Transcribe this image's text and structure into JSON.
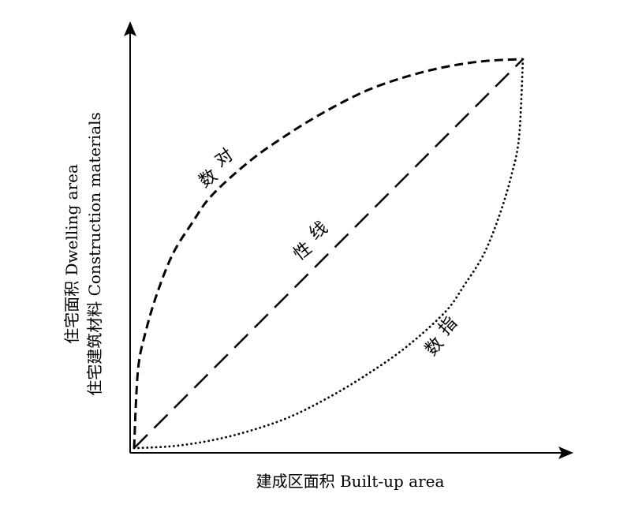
{
  "chart_data": {
    "type": "line",
    "xlabel": "建成区面积 Built-up area",
    "ylabel_lines": [
      "住宅面积 Dwelling area",
      "住宅建筑材料 Construction materials"
    ],
    "grid": false,
    "ticks": false,
    "xlim": [
      0,
      1
    ],
    "ylim": [
      0,
      1
    ],
    "series": [
      {
        "label_chars": [
          "对",
          "数"
        ],
        "style": "short-dash",
        "x": [
          0,
          0.01,
          0.03,
          0.06,
          0.1,
          0.15,
          0.2,
          0.3,
          0.4,
          0.5,
          0.6,
          0.7,
          0.8,
          0.9,
          1.0
        ],
        "y": [
          0,
          0.2,
          0.3,
          0.4,
          0.5,
          0.58,
          0.65,
          0.74,
          0.81,
          0.87,
          0.92,
          0.955,
          0.98,
          0.995,
          1.0
        ]
      },
      {
        "label_chars": [
          "线",
          "性"
        ],
        "style": "long-dash",
        "x": [
          0,
          1
        ],
        "y": [
          0,
          1
        ]
      },
      {
        "label_chars": [
          "指",
          "数"
        ],
        "style": "dotted",
        "x": [
          0,
          0.1,
          0.2,
          0.3,
          0.4,
          0.5,
          0.6,
          0.7,
          0.8,
          0.85,
          0.9,
          0.94,
          0.97,
          0.99,
          1.0
        ],
        "y": [
          0,
          0.005,
          0.02,
          0.045,
          0.08,
          0.13,
          0.19,
          0.26,
          0.35,
          0.42,
          0.5,
          0.6,
          0.7,
          0.8,
          1.0
        ]
      }
    ]
  }
}
